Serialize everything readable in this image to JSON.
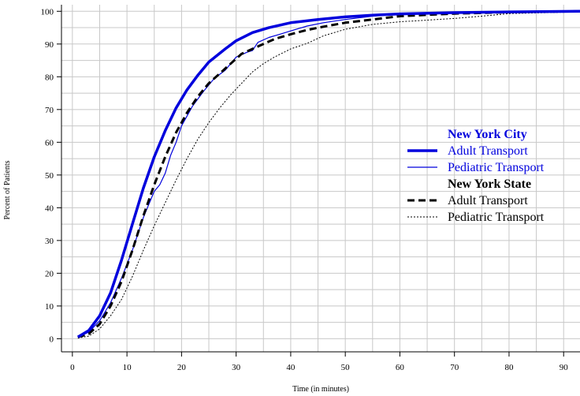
{
  "chart_data": {
    "type": "line",
    "title": "",
    "xlabel": "Time (in minutes)",
    "ylabel": "Percent of Patients",
    "xlim": [
      -2,
      93
    ],
    "ylim": [
      -4,
      102
    ],
    "x_ticks": [
      0,
      10,
      20,
      30,
      40,
      50,
      60,
      70,
      80,
      90
    ],
    "y_ticks": [
      0,
      10,
      20,
      30,
      40,
      50,
      60,
      70,
      80,
      90,
      100
    ],
    "grid": true,
    "legend_position": "right",
    "legend_groups": [
      {
        "heading": "New York City",
        "color": "#0000dd",
        "entries": [
          {
            "label": "Adult Transport",
            "series": 0
          },
          {
            "label": "Pediatric Transport",
            "series": 1
          }
        ]
      },
      {
        "heading": "New York State",
        "color": "#000000",
        "entries": [
          {
            "label": "Adult Transport",
            "series": 2
          },
          {
            "label": "Pediatric Transport",
            "series": 3
          }
        ]
      }
    ],
    "series": [
      {
        "color": "#0000dd",
        "line_style": "solid",
        "line_width": 3.5,
        "points": [
          [
            1,
            0.5
          ],
          [
            3,
            2.5
          ],
          [
            5,
            7
          ],
          [
            7,
            14
          ],
          [
            9,
            24
          ],
          [
            11,
            35
          ],
          [
            13,
            46
          ],
          [
            15,
            55.5
          ],
          [
            17,
            63.5
          ],
          [
            19,
            70.5
          ],
          [
            21,
            76
          ],
          [
            23,
            80.5
          ],
          [
            25,
            84.5
          ],
          [
            28,
            88.5
          ],
          [
            30,
            91
          ],
          [
            33,
            93.5
          ],
          [
            36,
            95
          ],
          [
            40,
            96.5
          ],
          [
            45,
            97.5
          ],
          [
            50,
            98.3
          ],
          [
            55,
            98.8
          ],
          [
            60,
            99.2
          ],
          [
            70,
            99.6
          ],
          [
            80,
            99.8
          ],
          [
            93,
            100
          ]
        ]
      },
      {
        "color": "#0000dd",
        "line_style": "solid",
        "line_width": 1.2,
        "points": [
          [
            1,
            0.5
          ],
          [
            3,
            2
          ],
          [
            5,
            5.5
          ],
          [
            7,
            11
          ],
          [
            9,
            18.5
          ],
          [
            11,
            27
          ],
          [
            13,
            37
          ],
          [
            15,
            45
          ],
          [
            16,
            47
          ],
          [
            17,
            50.5
          ],
          [
            18,
            56
          ],
          [
            19,
            60
          ],
          [
            20,
            65
          ],
          [
            22,
            71
          ],
          [
            24,
            75.5
          ],
          [
            26,
            79.5
          ],
          [
            28,
            82
          ],
          [
            30,
            86
          ],
          [
            32,
            87.5
          ],
          [
            33,
            88
          ],
          [
            34,
            90.5
          ],
          [
            36,
            92
          ],
          [
            38,
            93
          ],
          [
            40,
            94
          ],
          [
            43,
            95.5
          ],
          [
            46,
            96.5
          ],
          [
            50,
            97.5
          ],
          [
            55,
            98.5
          ],
          [
            60,
            99.3
          ],
          [
            70,
            99.6
          ],
          [
            80,
            99.8
          ],
          [
            93,
            100
          ]
        ]
      },
      {
        "color": "#000000",
        "line_style": "dashed",
        "line_width": 3,
        "points": [
          [
            1,
            0.5
          ],
          [
            3,
            1.5
          ],
          [
            5,
            4.5
          ],
          [
            7,
            10
          ],
          [
            9,
            17.5
          ],
          [
            11,
            27
          ],
          [
            13,
            37.5
          ],
          [
            15,
            47
          ],
          [
            17,
            55.5
          ],
          [
            19,
            63
          ],
          [
            21,
            69
          ],
          [
            23,
            74
          ],
          [
            25,
            78
          ],
          [
            27,
            81
          ],
          [
            29,
            84
          ],
          [
            31,
            87
          ],
          [
            33,
            88.5
          ],
          [
            35,
            90
          ],
          [
            37,
            91.5
          ],
          [
            40,
            93
          ],
          [
            43,
            94.3
          ],
          [
            46,
            95.3
          ],
          [
            50,
            96.5
          ],
          [
            55,
            97.5
          ],
          [
            60,
            98.5
          ],
          [
            70,
            99.3
          ],
          [
            80,
            99.7
          ],
          [
            93,
            100
          ]
        ]
      },
      {
        "color": "#000000",
        "line_style": "dotted",
        "line_width": 1,
        "points": [
          [
            1,
            0.2
          ],
          [
            3,
            0.8
          ],
          [
            5,
            3
          ],
          [
            7,
            7
          ],
          [
            9,
            12
          ],
          [
            11,
            19
          ],
          [
            13,
            27
          ],
          [
            15,
            34.5
          ],
          [
            17,
            41.5
          ],
          [
            19,
            48.5
          ],
          [
            21,
            55
          ],
          [
            23,
            61
          ],
          [
            25,
            66
          ],
          [
            27,
            70.5
          ],
          [
            29,
            74.5
          ],
          [
            31,
            78
          ],
          [
            33,
            81.5
          ],
          [
            35,
            84
          ],
          [
            37,
            86
          ],
          [
            40,
            88.5
          ],
          [
            43,
            90.2
          ],
          [
            46,
            92.5
          ],
          [
            50,
            94.5
          ],
          [
            55,
            96
          ],
          [
            60,
            96.8
          ],
          [
            65,
            97.3
          ],
          [
            70,
            97.8
          ],
          [
            75,
            98.5
          ],
          [
            80,
            99.3
          ],
          [
            90,
            99.7
          ],
          [
            93,
            100
          ]
        ]
      }
    ]
  }
}
